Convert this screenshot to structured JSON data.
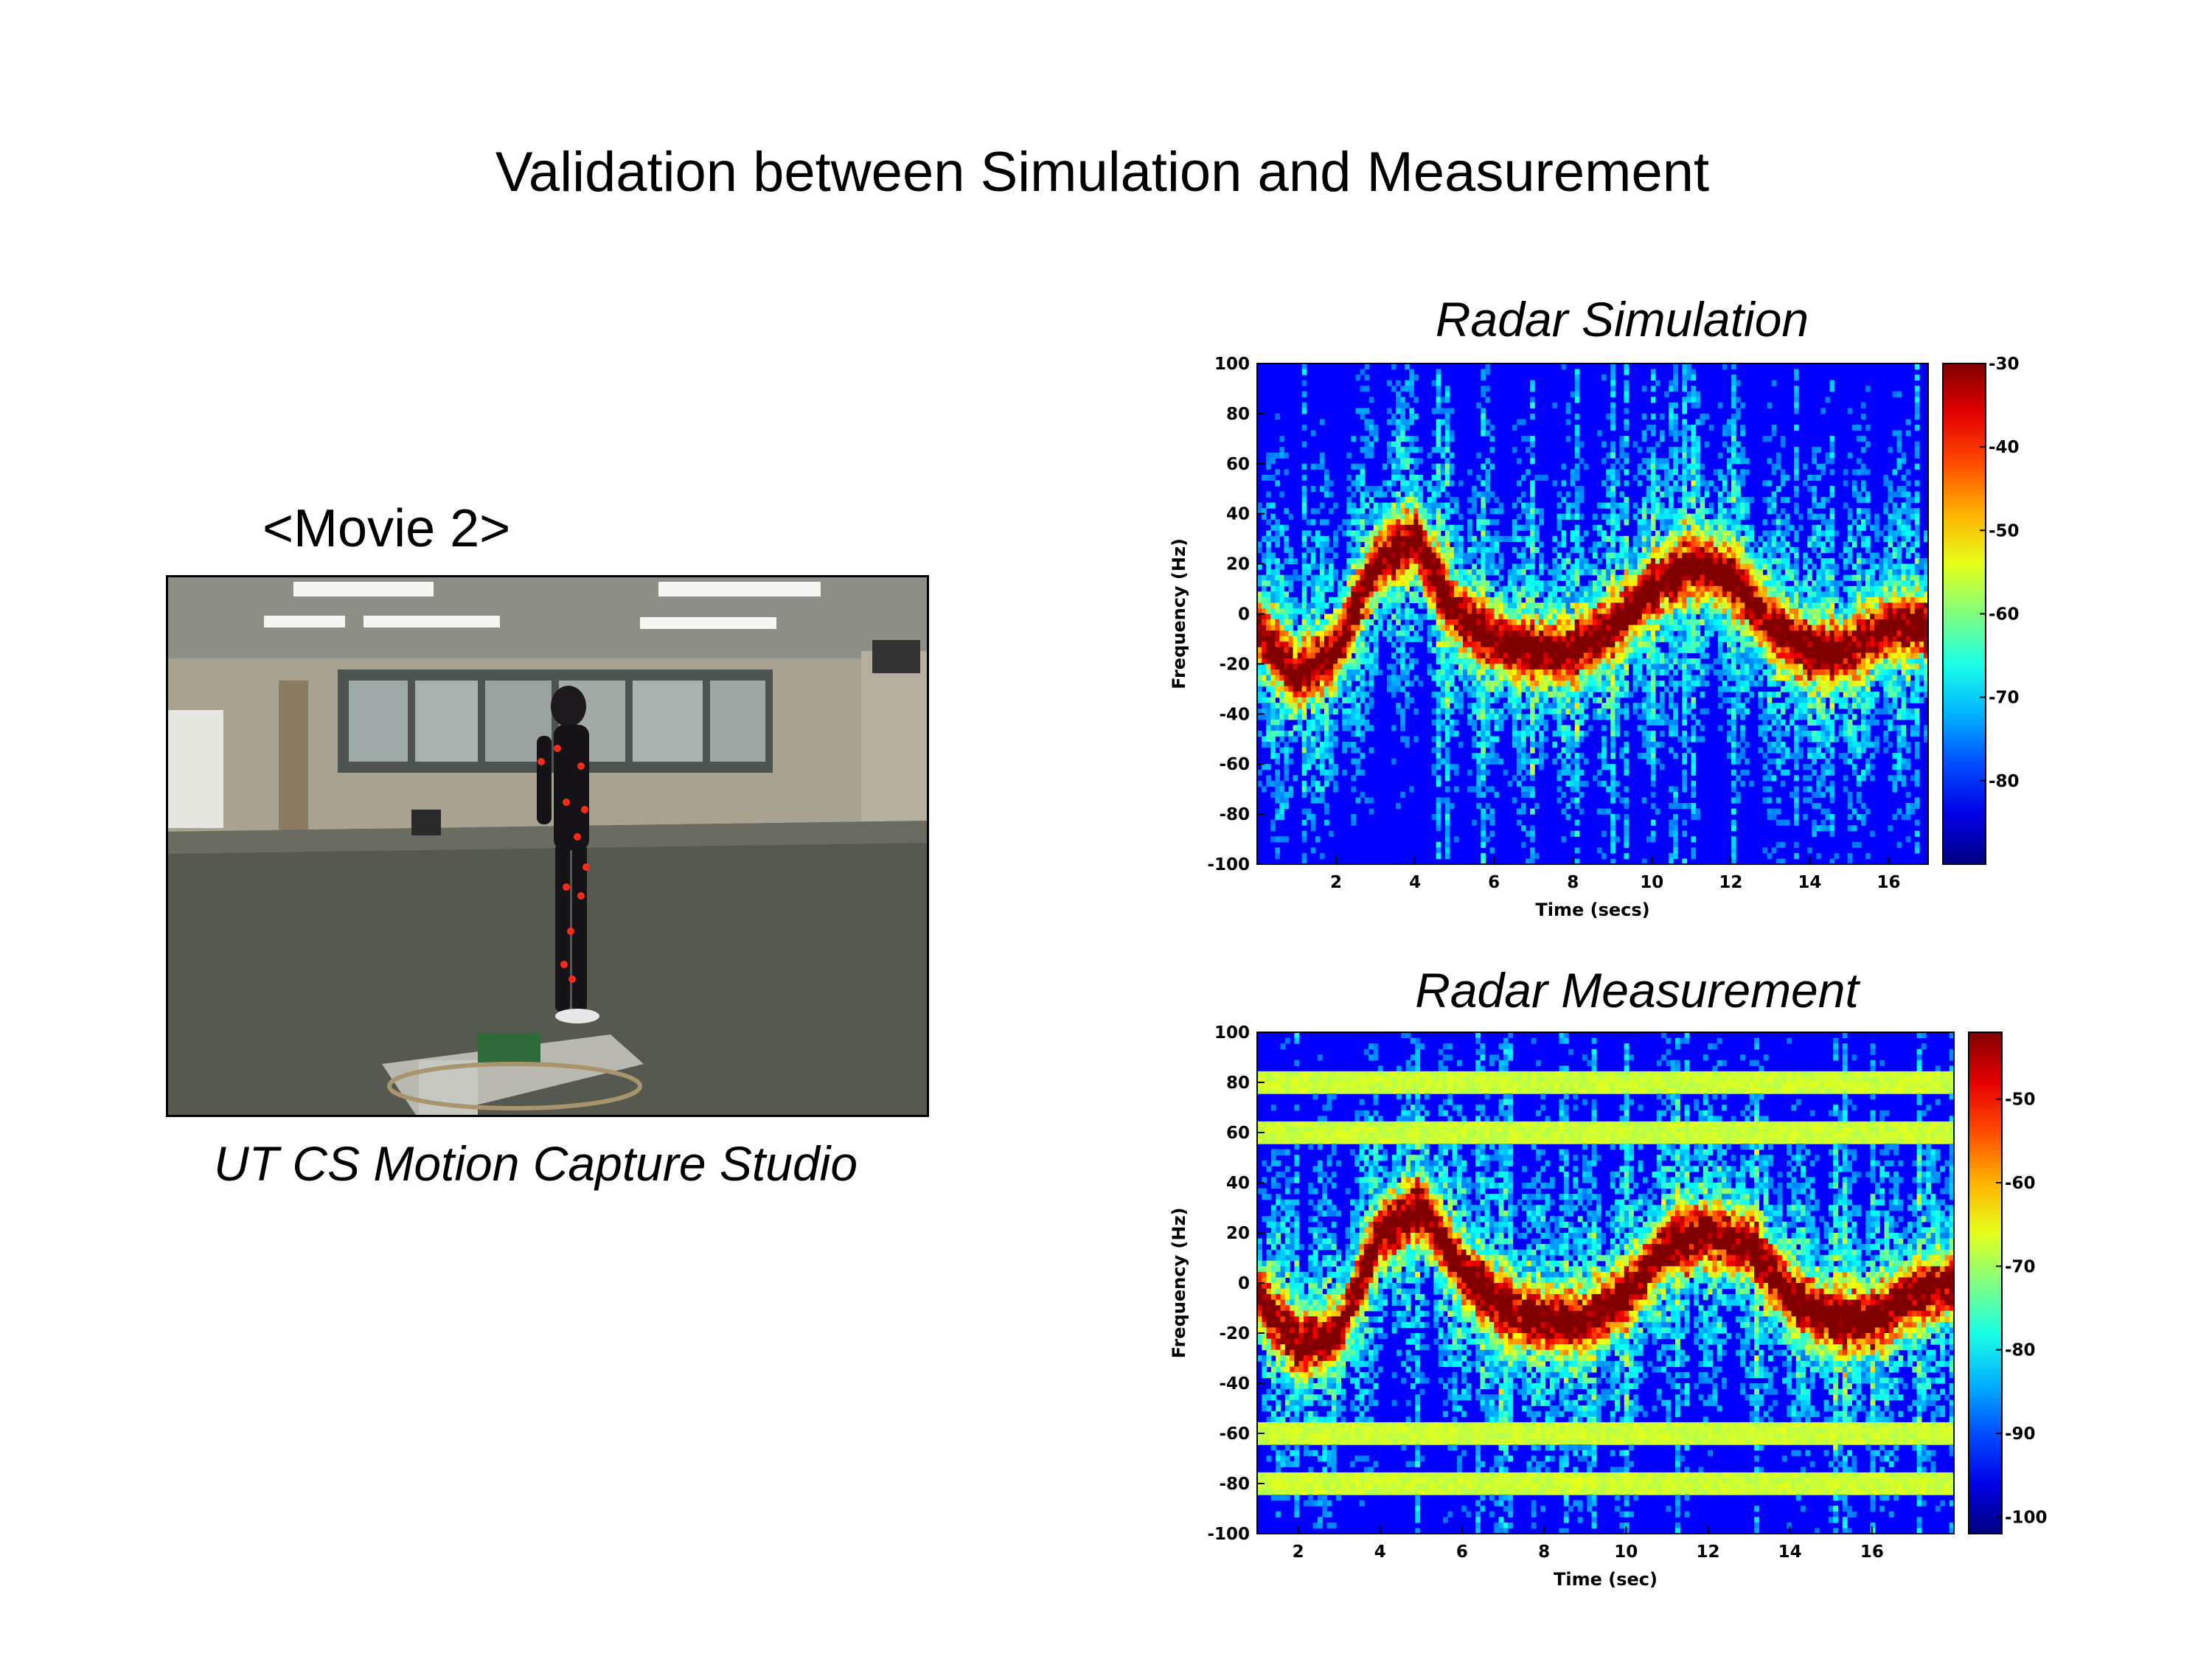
{
  "slide": {
    "title": "Validation between Simulation and Measurement",
    "movie_label": "<Movie 2>",
    "photo_caption": "UT CS Motion Capture Studio"
  },
  "colors": {
    "colormap": "jet",
    "jet_stops": [
      "#00008f",
      "#0000ff",
      "#00ffff",
      "#ffff00",
      "#ff0000",
      "#800000"
    ]
  },
  "chart_data": [
    {
      "type": "heatmap",
      "title": "Radar Simulation",
      "xlabel": "Time (secs)",
      "ylabel": "Frequency (Hz)",
      "xlim": [
        0,
        17
      ],
      "ylim": [
        -100,
        100
      ],
      "x_ticks": [
        2,
        4,
        6,
        8,
        10,
        12,
        14,
        16
      ],
      "y_ticks": [
        100,
        80,
        60,
        40,
        20,
        0,
        -20,
        -40,
        -60,
        -80,
        -100
      ],
      "colorbar": {
        "ticks": [
          -30,
          -40,
          -50,
          -60,
          -70,
          -80
        ],
        "range": [
          -90,
          -30
        ]
      },
      "ridge": {
        "time": [
          0,
          1,
          2,
          3,
          4,
          5,
          6,
          7,
          8,
          9,
          10,
          11,
          12,
          13,
          14,
          15,
          16,
          17
        ],
        "frequency_hz": [
          -5,
          -25,
          -15,
          20,
          30,
          0,
          -10,
          -15,
          -15,
          -5,
          10,
          20,
          15,
          -5,
          -15,
          -15,
          -5,
          -5
        ]
      }
    },
    {
      "type": "heatmap",
      "title": "Radar Measurement",
      "xlabel": "Time (sec)",
      "ylabel": "Frequency (Hz)",
      "xlim": [
        1,
        18
      ],
      "ylim": [
        -100,
        100
      ],
      "x_ticks": [
        2,
        4,
        6,
        8,
        10,
        12,
        14,
        16
      ],
      "y_ticks": [
        100,
        80,
        60,
        40,
        20,
        0,
        -20,
        -40,
        -60,
        -80,
        -100
      ],
      "colorbar": {
        "ticks": [
          -50,
          -60,
          -70,
          -80,
          -90,
          -100
        ],
        "range": [
          -102,
          -42
        ]
      },
      "ridge": {
        "time": [
          1,
          2,
          3,
          4,
          5,
          6,
          7,
          8,
          9,
          10,
          11,
          12,
          13,
          14,
          15,
          16,
          17,
          18
        ],
        "frequency_hz": [
          -5,
          -25,
          -20,
          20,
          30,
          5,
          -10,
          -15,
          -15,
          -5,
          15,
          20,
          15,
          -5,
          -15,
          -15,
          -5,
          0
        ]
      },
      "clutter_lines_hz": [
        80,
        60,
        -60,
        -80
      ]
    }
  ]
}
